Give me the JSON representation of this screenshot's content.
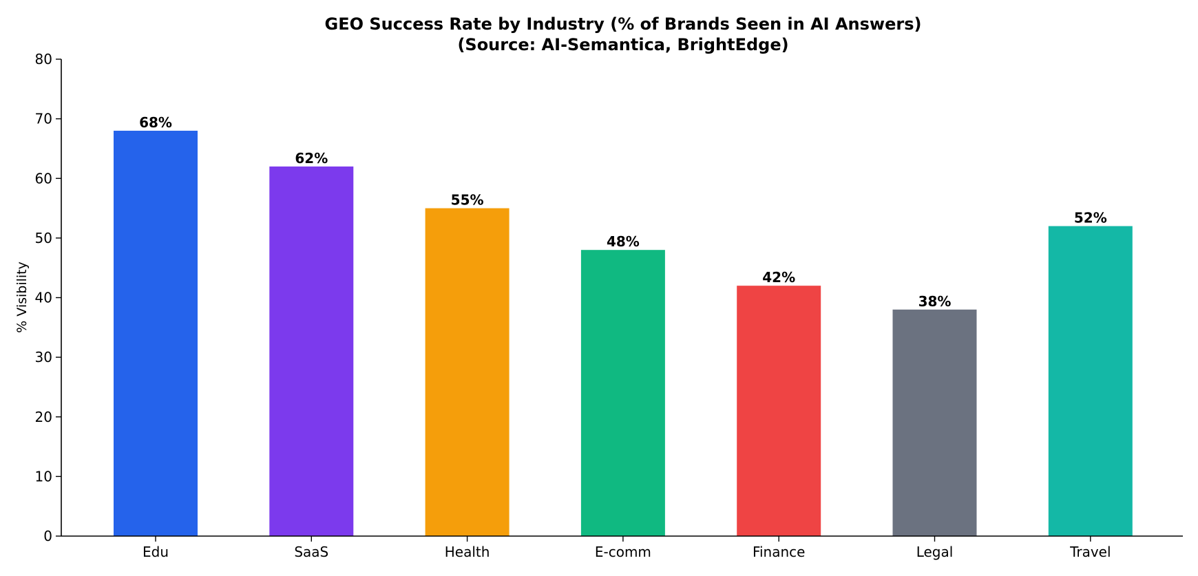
{
  "chart_data": {
    "type": "bar",
    "title_lines": [
      "GEO Success Rate by Industry (% of Brands Seen in AI Answers)",
      "(Source: AI-Semantica, BrightEdge)"
    ],
    "xlabel": "",
    "ylabel": "% Visibility",
    "ylim": [
      0,
      80
    ],
    "yticks": [
      0,
      10,
      20,
      30,
      40,
      50,
      60,
      70,
      80
    ],
    "categories": [
      "Edu",
      "SaaS",
      "Health",
      "E-comm",
      "Finance",
      "Legal",
      "Travel"
    ],
    "values": [
      68,
      62,
      55,
      48,
      42,
      38,
      52
    ],
    "value_labels": [
      "68%",
      "62%",
      "55%",
      "48%",
      "42%",
      "38%",
      "52%"
    ],
    "colors": [
      "#2563eb",
      "#7c3aed",
      "#f59e0b",
      "#10b981",
      "#ef4444",
      "#6b7280",
      "#14b8a6"
    ],
    "grid": false,
    "legend": "none",
    "spines": "left-bottom"
  }
}
